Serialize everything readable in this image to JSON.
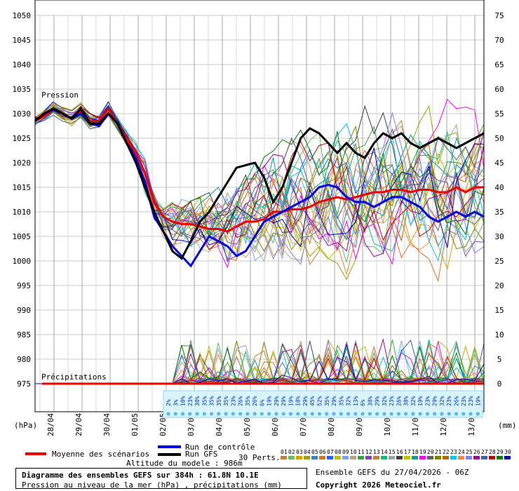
{
  "chart_data": {
    "type": "line",
    "title": "Diagramme des ensembles GEFS sur 384h : 61.8N 10.1E",
    "subtitle": "Pression au niveau de la mer (hPa) , précipitations (mm)",
    "y_left_unit": "(hPa)",
    "y_right_unit": "(mm)",
    "y_left_ticks": [
      975,
      980,
      985,
      990,
      995,
      1000,
      1005,
      1010,
      1015,
      1020,
      1025,
      1030,
      1035,
      1040,
      1045,
      1050
    ],
    "y_right_ticks": [
      0,
      5,
      10,
      15,
      20,
      25,
      30,
      35,
      40,
      45,
      50,
      55,
      60,
      65,
      70,
      75
    ],
    "ylim_pressure": [
      975,
      1050
    ],
    "ylim_precip": [
      0,
      75
    ],
    "x_ticks": [
      "28/04",
      "29/04",
      "30/04",
      "01/05",
      "02/05",
      "03/05",
      "04/05",
      "05/05",
      "06/05",
      "07/05",
      "08/05",
      "09/05",
      "10/05",
      "11/05",
      "12/05",
      "13/05"
    ],
    "grid": true,
    "label_pressure": "Pression",
    "label_precip": "Précipitations",
    "series": [
      {
        "name": "Moyenne des scénarios",
        "color": "#ee0000",
        "kind": "mean",
        "pressure": [
          1028.5,
          1029.5,
          1031,
          1030,
          1029,
          1030.5,
          1028.5,
          1028.5,
          1031,
          1028,
          1025,
          1022,
          1018,
          1012,
          1009,
          1008,
          1007.5,
          1007.5,
          1007,
          1006.5,
          1006.5,
          1006,
          1007,
          1008,
          1008,
          1008.5,
          1010,
          1010,
          1010.5,
          1010.5,
          1011,
          1012,
          1012.5,
          1013,
          1012.5,
          1013,
          1013.5,
          1014,
          1014,
          1014.5,
          1014.5,
          1014,
          1014.5,
          1014.5,
          1014,
          1014,
          1015,
          1014,
          1015,
          1015
        ]
      },
      {
        "name": "Run de contrôle",
        "color": "#0000ee",
        "kind": "control",
        "pressure": [
          1028.5,
          1030,
          1031,
          1030,
          1029,
          1030,
          1028,
          1027.5,
          1030,
          1028,
          1024,
          1021,
          1016,
          1009,
          1006,
          1003,
          1001,
          999,
          1002,
          1005,
          1004,
          1003,
          1001,
          1002,
          1005,
          1008,
          1009,
          1010,
          1011,
          1012,
          1013,
          1015,
          1015.5,
          1015,
          1013,
          1012,
          1012,
          1011,
          1012,
          1013,
          1013,
          1012,
          1011,
          1009,
          1008,
          1009,
          1010,
          1009,
          1010,
          1009
        ]
      },
      {
        "name": "Run GFS",
        "color": "#000000",
        "kind": "gfs",
        "pressure": [
          1028.5,
          1030,
          1031,
          1030,
          1029,
          1031,
          1028,
          1028,
          1030,
          1028,
          1024,
          1020,
          1015,
          1010,
          1006,
          1002,
          1000.5,
          1004,
          1008,
          1010,
          1013,
          1016,
          1019,
          1019.5,
          1020,
          1017,
          1012,
          1015,
          1020,
          1025,
          1027,
          1026,
          1024,
          1022,
          1024,
          1022,
          1021,
          1024,
          1026,
          1025,
          1026,
          1024,
          1023,
          1024,
          1025,
          1024,
          1023,
          1024,
          1025,
          1026
        ]
      }
    ],
    "precip_labels": [
      "2%",
      "3%",
      "10%",
      "23%",
      "30%",
      "35%",
      "35%",
      "35%",
      "35%",
      "23%",
      "26%",
      "35%",
      "26%",
      "6%",
      "19%",
      "29%",
      "29%",
      "19%",
      "10%",
      "29%",
      "45%",
      "52%",
      "35%",
      "29%",
      "35%",
      "32%",
      "13%",
      "6%",
      "38%",
      "29%",
      "32%",
      "23%",
      "26%",
      "38%",
      "32%",
      "19%",
      "23%",
      "29%",
      "32%",
      "23%",
      "26%",
      "23%",
      "23%",
      "19%"
    ],
    "legend": {
      "mean": "Moyenne des scénarios",
      "control": "Run de contrôle",
      "gfs": "Run GFS",
      "perts_label": "30 Perts.",
      "perts": [
        "01",
        "02",
        "03",
        "04",
        "05",
        "06",
        "07",
        "08",
        "09",
        "10",
        "11",
        "12",
        "13",
        "14",
        "15",
        "16",
        "17",
        "18",
        "19",
        "20",
        "21",
        "22",
        "23",
        "24",
        "25",
        "26",
        "27",
        "28",
        "29",
        "30"
      ],
      "pert_colors": [
        "#c08040",
        "#60c060",
        "#e0a000",
        "#a0a000",
        "#4080c0",
        "#e07020",
        "#2060ff",
        "#c0c000",
        "#80a0ff",
        "#c0a080",
        "#40a040",
        "#8040c0",
        "#c08040",
        "#00c080",
        "#a0a0a0",
        "#404040",
        "#c0c000",
        "#00a0a0",
        "#ff00ff",
        "#606060",
        "#808000",
        "#c06000",
        "#00c0ff",
        "#ff8040",
        "#8080ff",
        "#a000a0",
        "#4060a0",
        "#c00000",
        "#008000",
        "#0000c0"
      ]
    },
    "altitude": "Altitude du modele : 986m"
  },
  "footer": {
    "title": "Diagramme des ensembles GEFS sur 384h : 61.8N 10.1E",
    "subtitle": "Pression au niveau de la mer (hPa) , précipitations (mm)",
    "ensemble_run": "Ensemble GEFS du 27/04/2026 - 06Z",
    "copyright": "Copyright 2026 Meteociel.fr"
  }
}
